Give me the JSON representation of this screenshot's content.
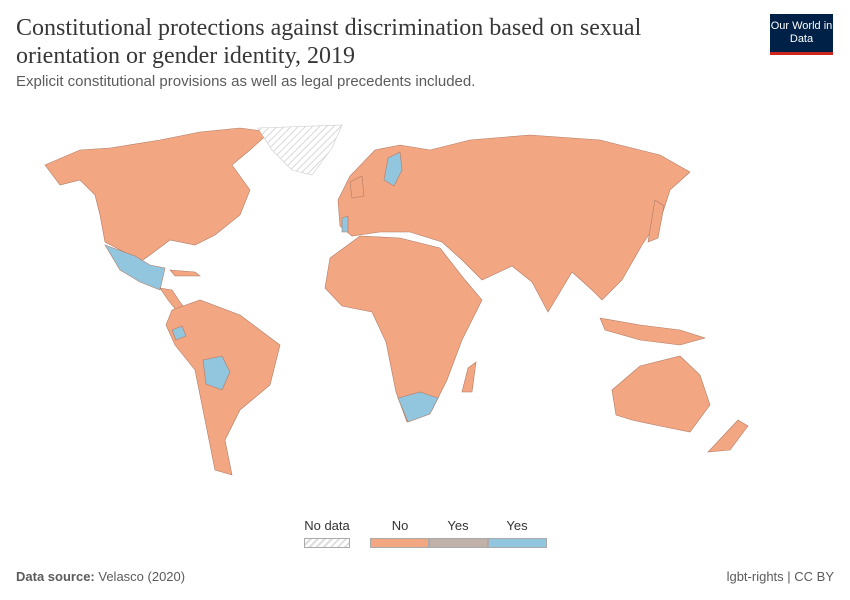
{
  "header": {
    "title": "Constitutional protections against discrimination based on sexual orientation or gender identity, 2019",
    "subtitle": "Explicit constitutional provisions as well as legal precedents included.",
    "logo": "Our World in Data"
  },
  "legend": {
    "items": [
      {
        "label": "No data",
        "color": "hatched"
      },
      {
        "label": "No",
        "color": "#f3a682"
      },
      {
        "label": "Yes",
        "color": "#c0b2aa"
      },
      {
        "label": "Yes",
        "color": "#92c5de"
      }
    ]
  },
  "colors": {
    "no": "#f3a682",
    "yes_partial": "#c0b2aa",
    "yes": "#92c5de",
    "no_data": "#e0e0e0",
    "border": "#8a6a5a"
  },
  "footer": {
    "source_label": "Data source:",
    "source": "Velasco (2020)",
    "right": "lgbt-rights | CC BY"
  }
}
